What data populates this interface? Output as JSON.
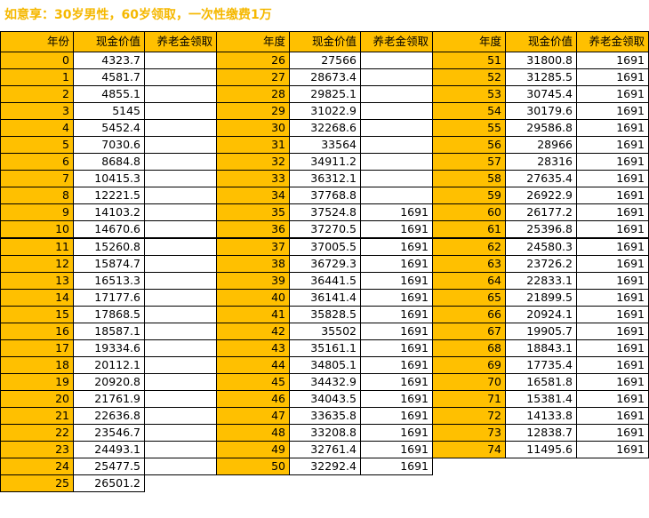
{
  "title": "如意享：30岁男性，60岁领取，一次性缴费1万",
  "headers": [
    "年份",
    "现金价值",
    "养老金领取",
    "年度",
    "现金价值",
    "养老金领取",
    "年度",
    "现金价值",
    "养老金领取"
  ],
  "rows": [
    [
      "0",
      "4323.7",
      "",
      "26",
      "27566",
      "",
      "51",
      "31800.8",
      "1691"
    ],
    [
      "1",
      "4581.7",
      "",
      "27",
      "28673.4",
      "",
      "52",
      "31285.5",
      "1691"
    ],
    [
      "2",
      "4855.1",
      "",
      "28",
      "29825.1",
      "",
      "53",
      "30745.4",
      "1691"
    ],
    [
      "3",
      "5145",
      "",
      "29",
      "31022.9",
      "",
      "54",
      "30179.6",
      "1691"
    ],
    [
      "4",
      "5452.4",
      "",
      "30",
      "32268.6",
      "",
      "55",
      "29586.8",
      "1691"
    ],
    [
      "5",
      "7030.6",
      "",
      "31",
      "33564",
      "",
      "56",
      "28966",
      "1691"
    ],
    [
      "6",
      "8684.8",
      "",
      "32",
      "34911.2",
      "",
      "57",
      "28316",
      "1691"
    ],
    [
      "7",
      "10415.3",
      "",
      "33",
      "36312.1",
      "",
      "58",
      "27635.4",
      "1691"
    ],
    [
      "8",
      "12221.5",
      "",
      "34",
      "37768.8",
      "",
      "59",
      "26922.9",
      "1691"
    ],
    [
      "9",
      "14103.2",
      "",
      "35",
      "37524.8",
      "1691",
      "60",
      "26177.2",
      "1691"
    ],
    [
      "10",
      "14670.6",
      "",
      "36",
      "37270.5",
      "1691",
      "61",
      "25396.8",
      "1691"
    ],
    [
      "11",
      "15260.8",
      "",
      "37",
      "37005.5",
      "1691",
      "62",
      "24580.3",
      "1691"
    ],
    [
      "12",
      "15874.7",
      "",
      "38",
      "36729.3",
      "1691",
      "63",
      "23726.2",
      "1691"
    ],
    [
      "13",
      "16513.3",
      "",
      "39",
      "36441.5",
      "1691",
      "64",
      "22833.1",
      "1691"
    ],
    [
      "14",
      "17177.6",
      "",
      "40",
      "36141.4",
      "1691",
      "65",
      "21899.5",
      "1691"
    ],
    [
      "15",
      "17868.5",
      "",
      "41",
      "35828.5",
      "1691",
      "66",
      "20924.1",
      "1691"
    ],
    [
      "16",
      "18587.1",
      "",
      "42",
      "35502",
      "1691",
      "67",
      "19905.7",
      "1691"
    ],
    [
      "17",
      "19334.6",
      "",
      "43",
      "35161.1",
      "1691",
      "68",
      "18843.1",
      "1691"
    ],
    [
      "18",
      "20112.1",
      "",
      "44",
      "34805.1",
      "1691",
      "69",
      "17735.4",
      "1691"
    ],
    [
      "19",
      "20920.8",
      "",
      "45",
      "34432.9",
      "1691",
      "70",
      "16581.8",
      "1691"
    ],
    [
      "20",
      "21761.9",
      "",
      "46",
      "34043.5",
      "1691",
      "71",
      "15381.4",
      "1691"
    ],
    [
      "21",
      "22636.8",
      "",
      "47",
      "33635.8",
      "1691",
      "72",
      "14133.8",
      "1691"
    ],
    [
      "22",
      "23546.7",
      "",
      "48",
      "33208.8",
      "1691",
      "73",
      "12838.7",
      "1691"
    ],
    [
      "23",
      "24493.1",
      "",
      "49",
      "32761.4",
      "1691",
      "74",
      "11495.6",
      "1691"
    ],
    [
      "24",
      "25477.5",
      "",
      "50",
      "32292.4",
      "1691",
      "",
      "",
      " "
    ],
    [
      "25",
      "26501.2",
      "",
      "",
      "",
      "",
      "",
      "",
      ""
    ]
  ],
  "colors": {
    "title": "#F5B800",
    "highlight": "#FFC000",
    "grid": "#000000"
  }
}
